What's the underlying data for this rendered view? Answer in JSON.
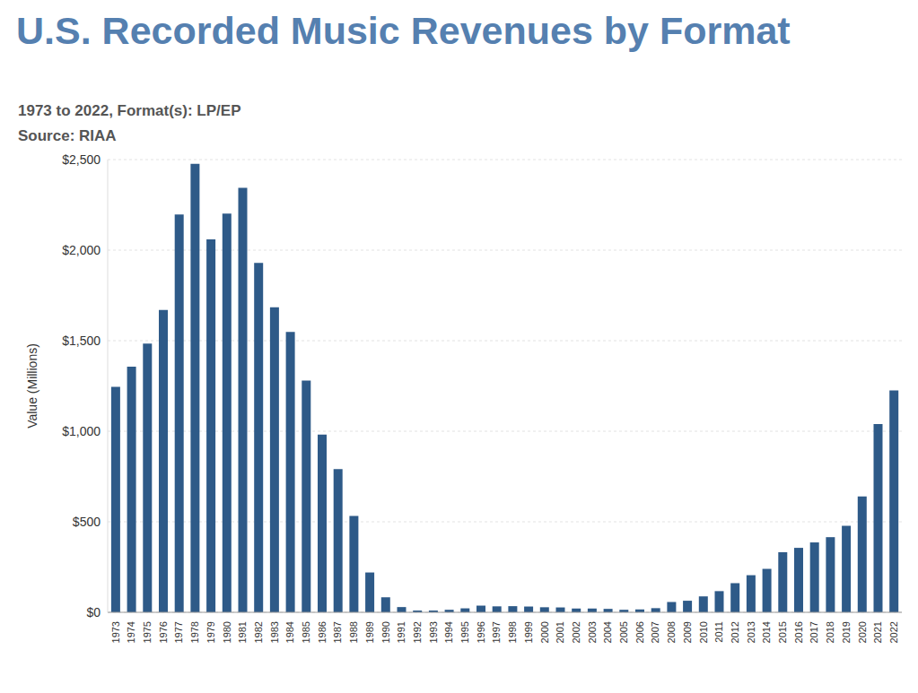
{
  "chart_data": {
    "type": "bar",
    "title": "U.S. Recorded Music Revenues by Format",
    "subtitle": [
      "1973 to 2022, Format(s): LP/EP",
      "Source: RIAA"
    ],
    "y_label": "Value (Millions)",
    "categories": [
      "1973",
      "1974",
      "1975",
      "1976",
      "1977",
      "1978",
      "1979",
      "1980",
      "1981",
      "1982",
      "1983",
      "1984",
      "1985",
      "1986",
      "1987",
      "1988",
      "1989",
      "1990",
      "1991",
      "1992",
      "1993",
      "1994",
      "1995",
      "1996",
      "1997",
      "1998",
      "1999",
      "2000",
      "2001",
      "2002",
      "2003",
      "2004",
      "2005",
      "2006",
      "2007",
      "2008",
      "2009",
      "2010",
      "2011",
      "2012",
      "2013",
      "2014",
      "2015",
      "2016",
      "2017",
      "2018",
      "2019",
      "2020",
      "2021",
      "2022"
    ],
    "values": [
      1245,
      1357,
      1484,
      1670,
      2197,
      2476,
      2060,
      2202,
      2344,
      1929,
      1685,
      1548,
      1280,
      981,
      791,
      532,
      220,
      83,
      29,
      10,
      10,
      14,
      22,
      37,
      33,
      34,
      32,
      28,
      27,
      21,
      21,
      19,
      14,
      16,
      23,
      57,
      64,
      88,
      117,
      161,
      205,
      240,
      332,
      356,
      386,
      415,
      478,
      640,
      1040,
      1225
    ],
    "color": "#2e5a88",
    "ylim": [
      0,
      2500
    ],
    "yticks": [
      {
        "value": 0,
        "label": "$0"
      },
      {
        "value": 500,
        "label": "$500"
      },
      {
        "value": 1000,
        "label": "$1,000"
      },
      {
        "value": 1500,
        "label": "$1,500"
      },
      {
        "value": 2000,
        "label": "$2,000"
      },
      {
        "value": 2500,
        "label": "$2,500"
      }
    ],
    "grid": true
  }
}
